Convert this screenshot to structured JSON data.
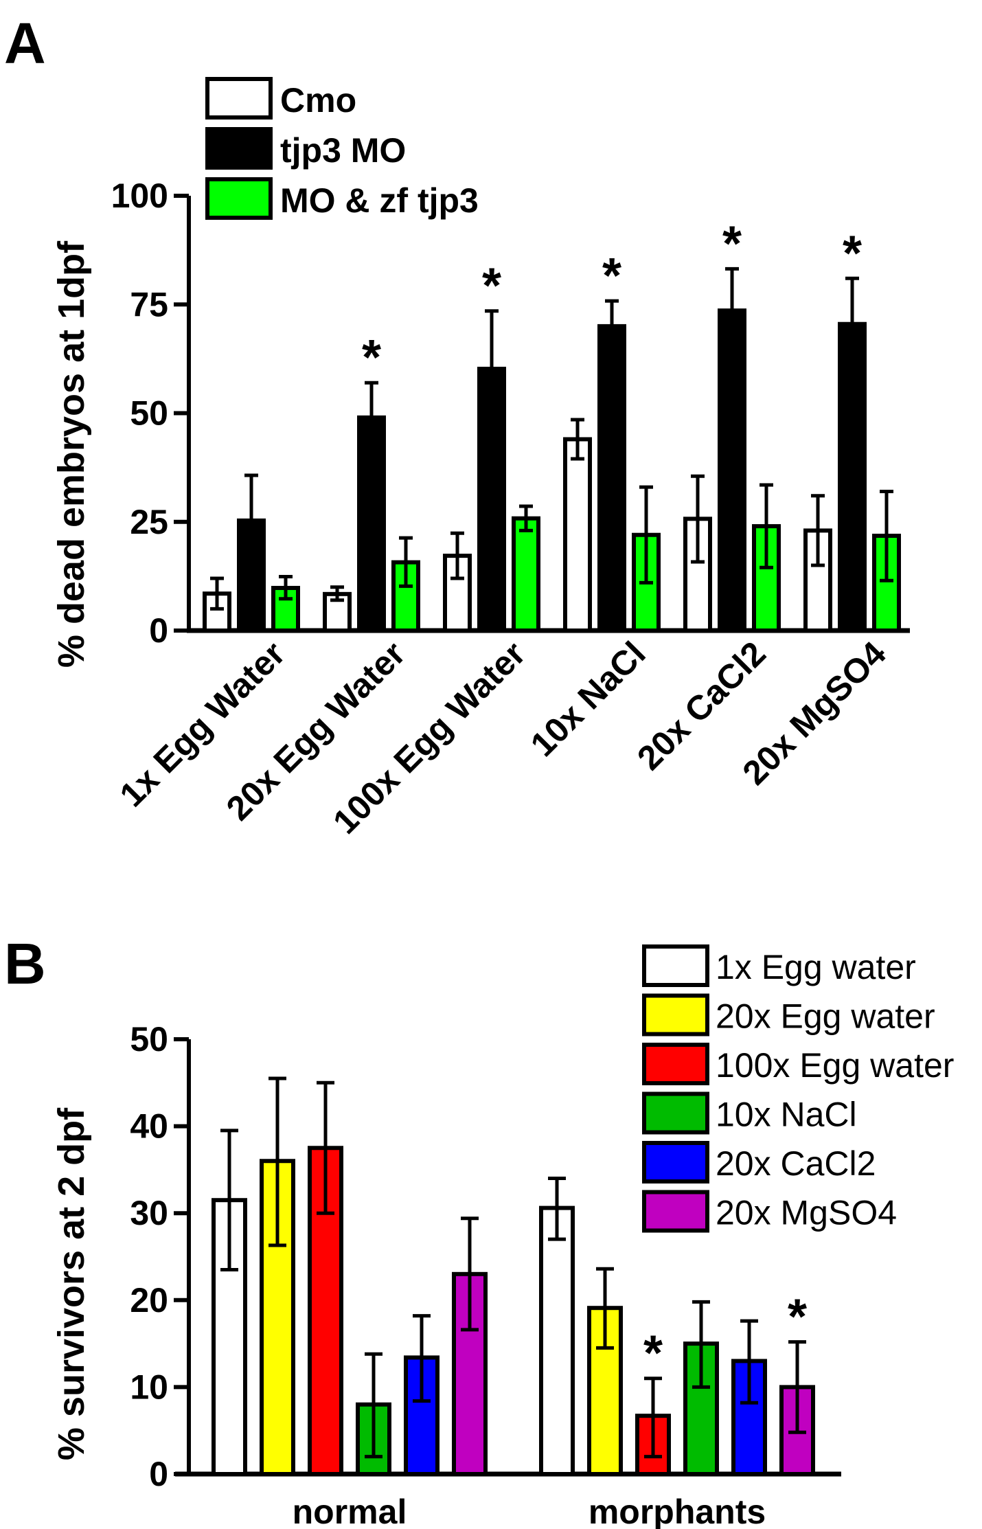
{
  "chart_data": [
    {
      "panel": "A",
      "type": "bar",
      "ylabel": "% dead embryos at 1dpf",
      "ylim": [
        0,
        100
      ],
      "yticks": [
        0,
        25,
        50,
        75,
        100
      ],
      "categories": [
        "1x Egg Water",
        "20x Egg Water",
        "100x Egg Water",
        "10x NaCl",
        "20x CaCl2",
        "20x MgSO4"
      ],
      "legend_position": "top-left",
      "series": [
        {
          "name": "Cmo",
          "color": "#ffffff",
          "values": [
            8.5,
            8.4,
            17.2,
            44,
            25.7,
            23
          ],
          "err_low": [
            5,
            7,
            12,
            39.5,
            15.8,
            15
          ],
          "err_high": [
            12,
            10,
            22.4,
            48.5,
            35.5,
            31
          ]
        },
        {
          "name": "tjp3 MO",
          "color": "#000000",
          "values": [
            25.3,
            49,
            60.2,
            70,
            73.6,
            70.5
          ],
          "err_low": [
            25.3,
            49,
            60.2,
            70,
            73.6,
            70.5
          ],
          "err_high": [
            35.7,
            57,
            73.5,
            75.8,
            83.2,
            81
          ],
          "significant": [
            false,
            true,
            true,
            true,
            true,
            true
          ]
        },
        {
          "name": "MO & zf tjp3",
          "color": "#00ff00",
          "values": [
            9.8,
            15.7,
            25.8,
            22,
            24,
            21.8
          ],
          "err_low": [
            7.3,
            10.2,
            23,
            11,
            14.5,
            11.5
          ],
          "err_high": [
            12.4,
            21.3,
            28.6,
            33,
            33.5,
            32
          ]
        }
      ]
    },
    {
      "panel": "B",
      "type": "bar",
      "ylabel": "% survivors at 2 dpf",
      "ylim": [
        0,
        50
      ],
      "yticks": [
        0,
        10,
        20,
        30,
        40,
        50
      ],
      "categories": [
        "normal",
        "morphants"
      ],
      "legend_position": "top-right",
      "series": [
        {
          "name": "1x Egg water",
          "color": "#ffffff",
          "values": [
            31.5,
            30.6
          ],
          "err_low": [
            23.5,
            27
          ],
          "err_high": [
            39.5,
            34
          ],
          "significant": [
            false,
            false
          ]
        },
        {
          "name": "20x Egg water",
          "color": "#ffff00",
          "values": [
            36,
            19.1
          ],
          "err_low": [
            26.3,
            14.5
          ],
          "err_high": [
            45.5,
            23.6
          ],
          "significant": [
            false,
            false
          ]
        },
        {
          "name": "100x Egg water",
          "color": "#ff0000",
          "values": [
            37.5,
            6.7
          ],
          "err_low": [
            30,
            2
          ],
          "err_high": [
            45,
            11
          ],
          "significant": [
            false,
            true
          ]
        },
        {
          "name": "10x NaCl",
          "color": "#00bb00",
          "values": [
            8,
            15
          ],
          "err_low": [
            2,
            10
          ],
          "err_high": [
            13.8,
            19.8
          ],
          "significant": [
            false,
            false
          ]
        },
        {
          "name": "20x CaCl2",
          "color": "#0000ff",
          "values": [
            13.4,
            13
          ],
          "err_low": [
            8.4,
            8.2
          ],
          "err_high": [
            18.2,
            17.6
          ],
          "significant": [
            false,
            false
          ]
        },
        {
          "name": "20x MgSO4",
          "color": "#c000c0",
          "values": [
            23,
            10
          ],
          "err_low": [
            16.6,
            4.8
          ],
          "err_high": [
            29.4,
            15.2
          ],
          "significant": [
            false,
            true
          ]
        }
      ]
    }
  ],
  "labels": {
    "panel_a": "A",
    "panel_b": "B",
    "star": "*"
  }
}
